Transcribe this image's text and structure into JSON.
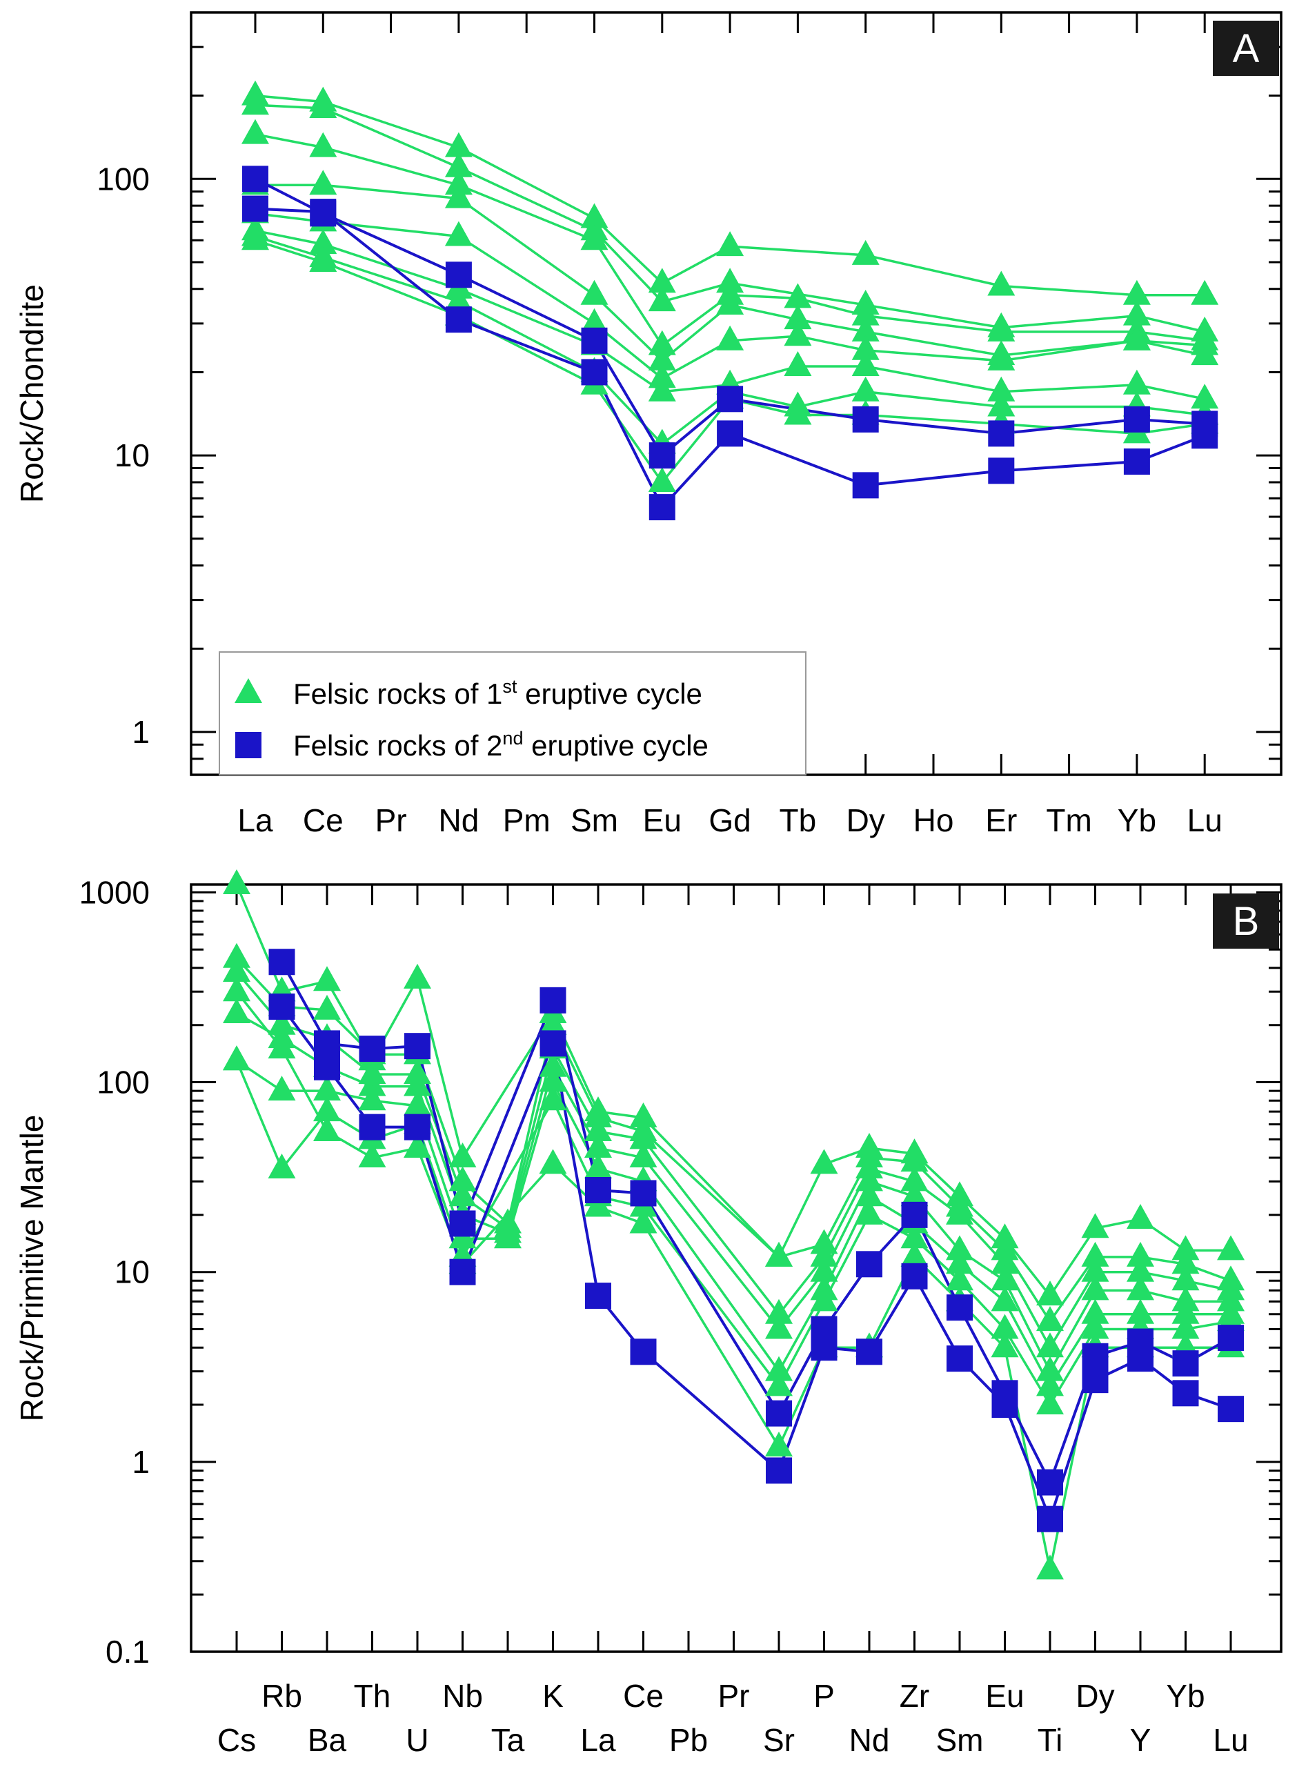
{
  "figure": {
    "colors": {
      "series1": "#22dd66",
      "series2": "#1a14c8",
      "axis": "#000000",
      "panel_label_bg": "#1a1a1a",
      "panel_label_text": "#ffffff"
    }
  },
  "chart_data": [
    {
      "panel": "A",
      "type": "line",
      "scale": "log",
      "ylabel": "Rock/Chondrite",
      "ylim": [
        0.7,
        400
      ],
      "y_ticks": [
        1,
        10,
        100
      ],
      "y_tick_labels": [
        "1",
        "10",
        "100"
      ],
      "categories": [
        "La",
        "Ce",
        "Pr",
        "Nd",
        "Pm",
        "Sm",
        "Eu",
        "Gd",
        "Tb",
        "Dy",
        "Ho",
        "Er",
        "Tm",
        "Yb",
        "Lu"
      ],
      "legend": {
        "position": "bottom-left",
        "entries": [
          {
            "marker": "triangle",
            "label_pre": "Felsic rocks of 1",
            "label_sup": "st",
            "label_post": " eruptive cycle"
          },
          {
            "marker": "square",
            "label_pre": "Felsic rocks of 2",
            "label_sup": "nd",
            "label_post": " eruptive cycle"
          }
        ]
      },
      "series": [
        {
          "group": 1,
          "name": "1st cycle 1",
          "values": [
            200,
            190,
            null,
            130,
            null,
            72,
            42,
            57,
            null,
            53,
            null,
            41,
            null,
            38,
            38
          ]
        },
        {
          "group": 1,
          "name": "1st cycle 2",
          "values": [
            185,
            180,
            null,
            110,
            null,
            65,
            36,
            42,
            null,
            35,
            null,
            29,
            null,
            32,
            28
          ]
        },
        {
          "group": 1,
          "name": "1st cycle 3",
          "values": [
            145,
            130,
            null,
            95,
            null,
            60,
            25,
            38,
            37,
            32,
            null,
            28,
            null,
            28,
            26
          ]
        },
        {
          "group": 1,
          "name": "1st cycle 4",
          "values": [
            95,
            95,
            null,
            85,
            null,
            38,
            22,
            35,
            31,
            28,
            null,
            23,
            null,
            26,
            25
          ]
        },
        {
          "group": 1,
          "name": "1st cycle 5",
          "values": [
            75,
            70,
            null,
            62,
            null,
            30,
            19,
            26,
            27,
            24,
            null,
            22,
            null,
            26,
            23
          ]
        },
        {
          "group": 1,
          "name": "1st cycle 6",
          "values": [
            65,
            58,
            null,
            40,
            null,
            25,
            17,
            18,
            21,
            21,
            null,
            17,
            null,
            18,
            16
          ]
        },
        {
          "group": 1,
          "name": "1st cycle 7",
          "values": [
            62,
            52,
            null,
            36,
            null,
            20,
            11,
            17,
            15,
            17,
            null,
            15,
            null,
            15,
            14
          ]
        },
        {
          "group": 1,
          "name": "1st cycle 8",
          "values": [
            60,
            50,
            null,
            32,
            null,
            18,
            8,
            16,
            14,
            14,
            null,
            13,
            null,
            12,
            13
          ]
        },
        {
          "group": 2,
          "name": "2nd cycle 1",
          "values": [
            100,
            75,
            null,
            45,
            null,
            26,
            10,
            16,
            null,
            13.5,
            null,
            12,
            null,
            13.5,
            13
          ]
        },
        {
          "group": 2,
          "name": "2nd cycle 2",
          "values": [
            78,
            76,
            null,
            31,
            null,
            20,
            6.5,
            12,
            null,
            7.8,
            null,
            8.8,
            null,
            9.5,
            11.8
          ]
        }
      ]
    },
    {
      "panel": "B",
      "type": "line",
      "scale": "log",
      "ylabel": "Rock/Primitive Mantle",
      "ylim": [
        0.1,
        1100
      ],
      "y_ticks": [
        0.1,
        1,
        10,
        100,
        1000
      ],
      "y_tick_labels": [
        "0.1",
        "1",
        "10",
        "100",
        "1000"
      ],
      "categories": [
        "Cs",
        "Rb",
        "Ba",
        "Th",
        "U",
        "Nb",
        "Ta",
        "K",
        "La",
        "Ce",
        "Pb",
        "Pr",
        "Sr",
        "P",
        "Nd",
        "Zr",
        "Sm",
        "Eu",
        "Ti",
        "Dy",
        "Y",
        "Yb",
        "Lu"
      ],
      "series": [
        {
          "group": 1,
          "name": "1st cycle 1",
          "values": [
            1100,
            300,
            340,
            130,
            350,
            40,
            null,
            230,
            70,
            65,
            null,
            null,
            12,
            37,
            45,
            42,
            25,
            15,
            7.5,
            17,
            19,
            13,
            13
          ]
        },
        {
          "group": 1,
          "name": "1st cycle 2",
          "values": [
            450,
            250,
            240,
            140,
            140,
            30,
            18,
            200,
            65,
            55,
            null,
            null,
            12,
            14,
            40,
            38,
            22,
            13,
            5.5,
            12,
            12,
            11,
            9
          ]
        },
        {
          "group": 1,
          "name": "1st cycle 3",
          "values": [
            380,
            200,
            170,
            110,
            110,
            25,
            17,
            150,
            55,
            50,
            null,
            null,
            6,
            12,
            35,
            30,
            20,
            11,
            4,
            10,
            10,
            9,
            8
          ]
        },
        {
          "group": 1,
          "name": "1st cycle 4",
          "values": [
            230,
            170,
            120,
            95,
            95,
            20,
            16,
            120,
            45,
            40,
            null,
            null,
            5,
            10,
            30,
            25,
            13,
            9,
            3,
            8,
            8,
            7,
            7
          ]
        },
        {
          "group": 1,
          "name": "1st cycle 5",
          "values": [
            130,
            90,
            90,
            80,
            75,
            15,
            15,
            100,
            35,
            30,
            null,
            null,
            3,
            8,
            25,
            18,
            11,
            7,
            2.5,
            6,
            6,
            6,
            6
          ]
        },
        {
          "group": 1,
          "name": "1st cycle 6",
          "values": [
            130,
            35,
            70,
            50,
            60,
            12,
            null,
            80,
            25,
            22,
            null,
            null,
            2.5,
            7,
            20,
            15,
            9,
            5,
            2,
            5,
            5,
            5,
            5.5
          ]
        },
        {
          "group": 1,
          "name": "1st cycle 7",
          "values": [
            300,
            150,
            55,
            40,
            45,
            11,
            null,
            37,
            22,
            18,
            null,
            null,
            1.2,
            4,
            4,
            12,
            7,
            4,
            0.27,
            4,
            4,
            4,
            4
          ]
        },
        {
          "group": 2,
          "name": "2nd cycle 1",
          "values": [
            null,
            430,
            160,
            150,
            155,
            18,
            null,
            270,
            27,
            26,
            null,
            null,
            1.8,
            5,
            11,
            20,
            6.5,
            2.3,
            0.78,
            3.6,
            4.3,
            3.3,
            4.5
          ]
        },
        {
          "group": 2,
          "name": "2nd cycle 2",
          "values": [
            null,
            250,
            120,
            58,
            58,
            10,
            null,
            160,
            7.5,
            3.8,
            null,
            null,
            0.9,
            4,
            3.8,
            9.5,
            3.5,
            2,
            0.5,
            2.7,
            3.5,
            2.3,
            1.9
          ]
        }
      ]
    }
  ]
}
